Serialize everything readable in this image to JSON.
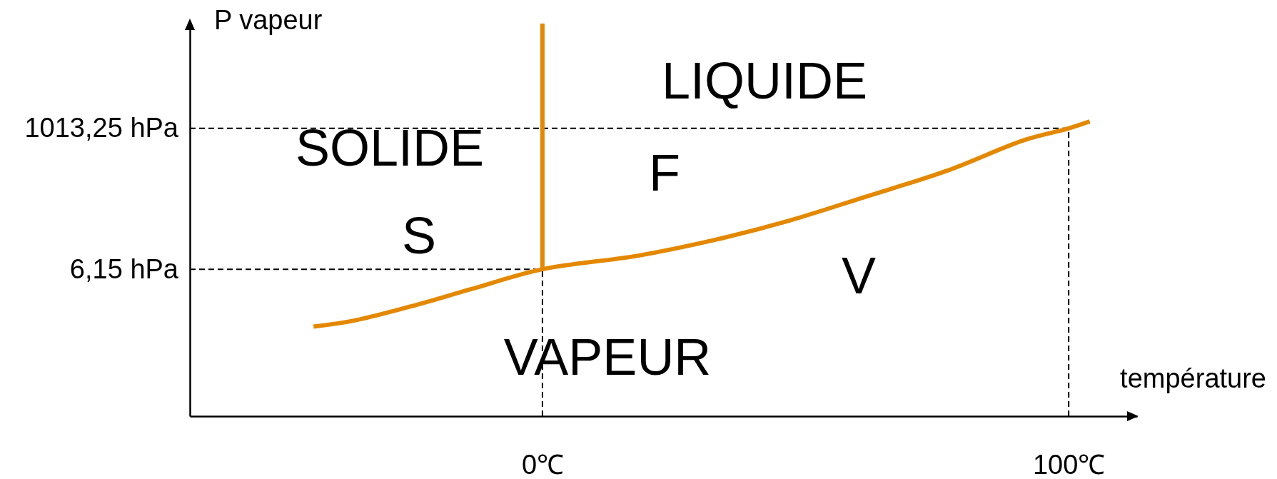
{
  "chart_data": {
    "type": "line",
    "xlabel": "température",
    "ylabel": "P vapeur",
    "xlim": [
      -67,
      113
    ],
    "ylim": [
      0.03,
      50000
    ],
    "log": "y",
    "xticks": [
      {
        "value": 0,
        "label": "0℃"
      },
      {
        "value": 100,
        "label": "100℃"
      }
    ],
    "yticks": [
      {
        "value": 6.15,
        "label": "6,15 hPa"
      },
      {
        "value": 1013.25,
        "label": "1013,25 hPa"
      }
    ],
    "series": [
      {
        "color": "#e38800",
        "x": [
          -43.5,
          -36,
          -25,
          -13.5,
          0,
          18,
          33,
          47,
          61,
          77,
          91.5,
          100,
          104
        ],
        "values": [
          0.77,
          0.95,
          1.6,
          3,
          6.15,
          10,
          18,
          36,
          83,
          220,
          660,
          1013.25,
          1300
        ]
      },
      {
        "color": "#e38800",
        "x": [
          0,
          0
        ],
        "values": [
          6.15,
          45000
        ]
      }
    ],
    "ref_lines": [
      {
        "axis": "y",
        "value": 1013.25,
        "color": "#000000",
        "line_style": "dashed"
      },
      {
        "axis": "y",
        "value": 6.15,
        "color": "#000000",
        "line_style": "dashed"
      },
      {
        "axis": "x",
        "value": 0,
        "color": "#000000",
        "line_style": "dashed"
      },
      {
        "axis": "x",
        "value": 100,
        "color": "#000000",
        "line_style": "dashed"
      }
    ],
    "annotations": [
      "LIQUIDE",
      "SOLIDE",
      "S",
      "F",
      "V",
      "VAPEUR"
    ]
  }
}
